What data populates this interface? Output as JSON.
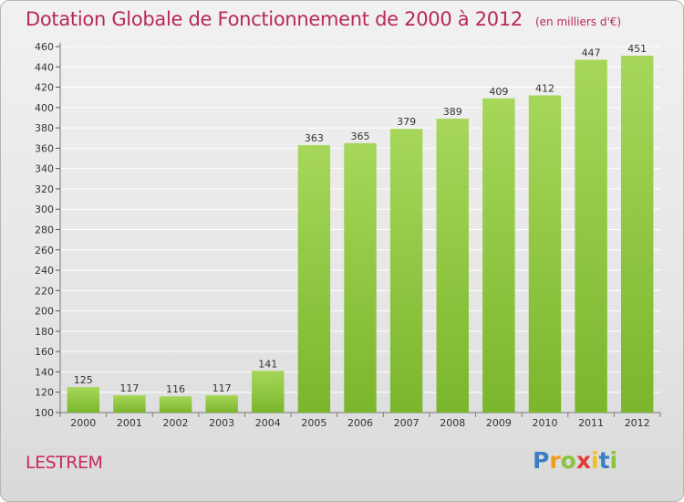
{
  "chart_data": {
    "type": "bar",
    "title": "Dotation Globale de Fonctionnement de 2000 à 2012",
    "subtitle": "(en milliers d'€)",
    "categories": [
      "2000",
      "2001",
      "2002",
      "2003",
      "2004",
      "2005",
      "2006",
      "2007",
      "2008",
      "2009",
      "2010",
      "2011",
      "2012"
    ],
    "values": [
      125,
      117,
      116,
      117,
      141,
      363,
      365,
      379,
      389,
      409,
      412,
      447,
      451
    ],
    "y_ticks": [
      100,
      120,
      140,
      160,
      180,
      200,
      220,
      240,
      260,
      280,
      300,
      320,
      340,
      360,
      380,
      400,
      420,
      440,
      460
    ],
    "ylim": [
      100,
      460
    ],
    "grid": true,
    "bar_color": "#7bb62c",
    "bar_color_light": "#a6d75a",
    "grid_color": "#ffffff"
  },
  "footer": {
    "commune": "LESTREM",
    "logo_letters": [
      "P",
      "r",
      "o",
      "x",
      "i",
      "t",
      "i"
    ],
    "logo_colors": [
      "#3d7fc4",
      "#f29a1a",
      "#8ac43f",
      "#e23d33",
      "#f2c21a",
      "#3d7fc4",
      "#8ac43f"
    ]
  }
}
